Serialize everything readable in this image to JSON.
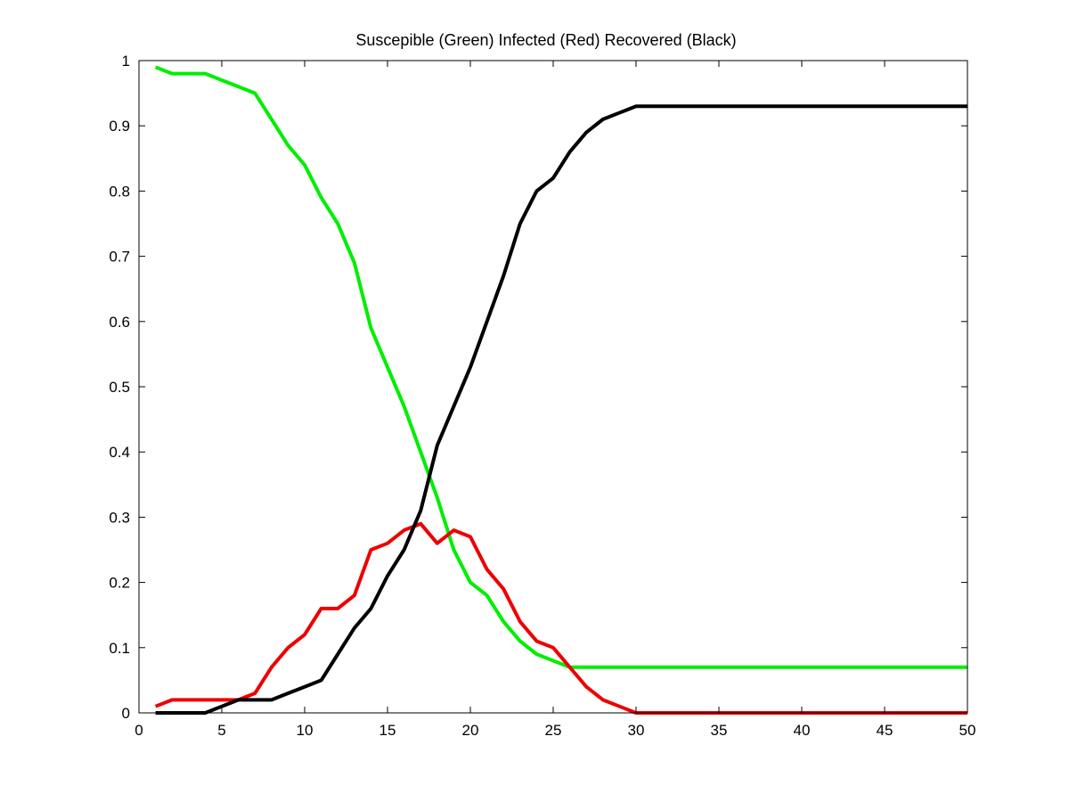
{
  "chart_data": {
    "type": "line",
    "title": "Suscepible (Green) Infected (Red) Recovered (Black)",
    "xlabel": "",
    "ylabel": "",
    "xlim": [
      0,
      50
    ],
    "ylim": [
      0,
      1
    ],
    "xticks": [
      0,
      5,
      10,
      15,
      20,
      25,
      30,
      35,
      40,
      45,
      50
    ],
    "yticks": [
      0,
      0.1,
      0.2,
      0.3,
      0.4,
      0.5,
      0.6,
      0.7,
      0.8,
      0.9,
      1
    ],
    "xtick_labels": [
      "0",
      "5",
      "10",
      "15",
      "20",
      "25",
      "30",
      "35",
      "40",
      "45",
      "50"
    ],
    "ytick_labels": [
      "0",
      "0.1",
      "0.2",
      "0.3",
      "0.4",
      "0.5",
      "0.6",
      "0.7",
      "0.8",
      "0.9",
      "1"
    ],
    "grid": false,
    "x": [
      1,
      2,
      3,
      4,
      5,
      6,
      7,
      8,
      9,
      10,
      11,
      12,
      13,
      14,
      15,
      16,
      17,
      18,
      19,
      20,
      21,
      22,
      23,
      24,
      25,
      26,
      27,
      28,
      29,
      30,
      31,
      32,
      33,
      34,
      35,
      36,
      37,
      38,
      39,
      40,
      41,
      42,
      43,
      44,
      45,
      46,
      47,
      48,
      49,
      50
    ],
    "series": [
      {
        "name": "Susceptible",
        "color": "#00ee00",
        "values": [
          0.99,
          0.98,
          0.98,
          0.98,
          0.97,
          0.96,
          0.95,
          0.91,
          0.87,
          0.84,
          0.79,
          0.75,
          0.69,
          0.59,
          0.53,
          0.47,
          0.4,
          0.33,
          0.25,
          0.2,
          0.18,
          0.14,
          0.11,
          0.09,
          0.08,
          0.07,
          0.07,
          0.07,
          0.07,
          0.07,
          0.07,
          0.07,
          0.07,
          0.07,
          0.07,
          0.07,
          0.07,
          0.07,
          0.07,
          0.07,
          0.07,
          0.07,
          0.07,
          0.07,
          0.07,
          0.07,
          0.07,
          0.07,
          0.07,
          0.07
        ]
      },
      {
        "name": "Infected",
        "color": "#ee0000",
        "values": [
          0.01,
          0.02,
          0.02,
          0.02,
          0.02,
          0.02,
          0.03,
          0.07,
          0.1,
          0.12,
          0.16,
          0.16,
          0.18,
          0.25,
          0.26,
          0.28,
          0.29,
          0.26,
          0.28,
          0.27,
          0.22,
          0.19,
          0.14,
          0.11,
          0.1,
          0.07,
          0.04,
          0.02,
          0.01,
          0.0,
          0.0,
          0.0,
          0.0,
          0.0,
          0.0,
          0.0,
          0.0,
          0.0,
          0.0,
          0.0,
          0.0,
          0.0,
          0.0,
          0.0,
          0.0,
          0.0,
          0.0,
          0.0,
          0.0,
          0.0
        ]
      },
      {
        "name": "Recovered",
        "color": "#000000",
        "values": [
          0.0,
          0.0,
          0.0,
          0.0,
          0.01,
          0.02,
          0.02,
          0.02,
          0.03,
          0.04,
          0.05,
          0.09,
          0.13,
          0.16,
          0.21,
          0.25,
          0.31,
          0.41,
          0.47,
          0.53,
          0.6,
          0.67,
          0.75,
          0.8,
          0.82,
          0.86,
          0.89,
          0.91,
          0.92,
          0.93,
          0.93,
          0.93,
          0.93,
          0.93,
          0.93,
          0.93,
          0.93,
          0.93,
          0.93,
          0.93,
          0.93,
          0.93,
          0.93,
          0.93,
          0.93,
          0.93,
          0.93,
          0.93,
          0.93,
          0.93
        ]
      }
    ]
  }
}
